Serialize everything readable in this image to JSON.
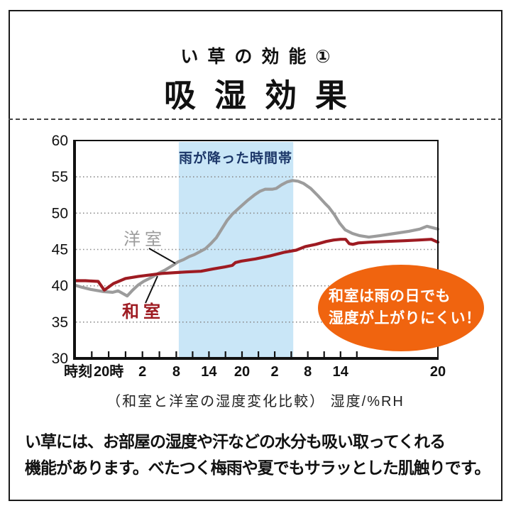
{
  "header": {
    "subtitle": "い草の効能①",
    "title": "吸湿効果"
  },
  "caption": "（和室と洋室の湿度変化比較） 湿度/%RH",
  "body": {
    "line1": "い草には、お部屋の湿度や汗などの水分も吸い取ってくれる",
    "line2": "機能があります。べたつく梅雨や夏でもサラッとした肌触りです。"
  },
  "chart_data": {
    "type": "line",
    "title": "和室と洋室の湿度変化比較",
    "ylabel": "湿度/%RH",
    "x_axis": {
      "prefix_label": "時刻",
      "tick_labels": [
        "20時",
        "2",
        "8",
        "14",
        "20",
        "2",
        "8",
        "14",
        "20"
      ],
      "tick_positions": [
        0.094,
        0.187,
        0.28,
        0.37,
        0.461,
        0.551,
        0.642,
        0.732,
        1.0
      ],
      "minor_tick_positions": [
        0.0475,
        0.1405,
        0.2335,
        0.325,
        0.4155,
        0.506,
        0.5965,
        0.687,
        0.777
      ]
    },
    "y_axis": {
      "min": 30,
      "max": 60,
      "step": 5,
      "tick_labels": [
        60,
        55,
        50,
        45,
        40,
        35,
        30
      ],
      "gridline_values": [
        55,
        50,
        45,
        40,
        35
      ],
      "label": "湿度/%RH"
    },
    "rain_band": {
      "label": "雨が降った時間帯",
      "x_start": 0.287,
      "x_end": 0.602,
      "color": "#c9e6f7",
      "label_color": "#1b3668"
    },
    "series": [
      {
        "name": "洋室",
        "color": "#9c9c9c",
        "points": [
          [
            0,
            40.1
          ],
          [
            0.02,
            39.8
          ],
          [
            0.045,
            39.5
          ],
          [
            0.08,
            39.2
          ],
          [
            0.105,
            39.1
          ],
          [
            0.12,
            39.3
          ],
          [
            0.145,
            38.6
          ],
          [
            0.16,
            39.4
          ],
          [
            0.175,
            40.1
          ],
          [
            0.19,
            40.6
          ],
          [
            0.21,
            41.1
          ],
          [
            0.23,
            41.7
          ],
          [
            0.25,
            42.2
          ],
          [
            0.27,
            42.8
          ],
          [
            0.285,
            43.3
          ],
          [
            0.3,
            43.6
          ],
          [
            0.315,
            44.0
          ],
          [
            0.33,
            44.3
          ],
          [
            0.345,
            44.7
          ],
          [
            0.36,
            45.1
          ],
          [
            0.375,
            45.8
          ],
          [
            0.39,
            46.6
          ],
          [
            0.405,
            47.8
          ],
          [
            0.42,
            49.0
          ],
          [
            0.435,
            49.9
          ],
          [
            0.455,
            50.8
          ],
          [
            0.475,
            51.7
          ],
          [
            0.495,
            52.5
          ],
          [
            0.51,
            53.0
          ],
          [
            0.525,
            53.3
          ],
          [
            0.545,
            53.3
          ],
          [
            0.555,
            53.4
          ],
          [
            0.57,
            53.9
          ],
          [
            0.585,
            54.3
          ],
          [
            0.6,
            54.5
          ],
          [
            0.615,
            54.4
          ],
          [
            0.63,
            54.1
          ],
          [
            0.65,
            53.4
          ],
          [
            0.67,
            52.4
          ],
          [
            0.69,
            51.3
          ],
          [
            0.7,
            50.8
          ],
          [
            0.715,
            49.8
          ],
          [
            0.73,
            48.6
          ],
          [
            0.745,
            47.7
          ],
          [
            0.765,
            47.2
          ],
          [
            0.785,
            46.9
          ],
          [
            0.81,
            46.7
          ],
          [
            0.84,
            46.9
          ],
          [
            0.88,
            47.2
          ],
          [
            0.92,
            47.5
          ],
          [
            0.95,
            47.8
          ],
          [
            0.97,
            48.2
          ],
          [
            0.985,
            48.0
          ],
          [
            1,
            47.8
          ]
        ]
      },
      {
        "name": "和室",
        "color": "#9e1b22",
        "points": [
          [
            0,
            40.7
          ],
          [
            0.03,
            40.7
          ],
          [
            0.065,
            40.6
          ],
          [
            0.082,
            39.4
          ],
          [
            0.107,
            40.3
          ],
          [
            0.14,
            41.0
          ],
          [
            0.176,
            41.3
          ],
          [
            0.24,
            41.7
          ],
          [
            0.307,
            41.9
          ],
          [
            0.348,
            42.0
          ],
          [
            0.38,
            42.3
          ],
          [
            0.414,
            42.6
          ],
          [
            0.434,
            42.8
          ],
          [
            0.443,
            43.2
          ],
          [
            0.459,
            43.4
          ],
          [
            0.498,
            43.7
          ],
          [
            0.537,
            44.1
          ],
          [
            0.576,
            44.6
          ],
          [
            0.61,
            44.9
          ],
          [
            0.635,
            45.4
          ],
          [
            0.664,
            45.7
          ],
          [
            0.693,
            46.1
          ],
          [
            0.713,
            46.3
          ],
          [
            0.732,
            46.4
          ],
          [
            0.746,
            46.4
          ],
          [
            0.756,
            45.8
          ],
          [
            0.766,
            45.7
          ],
          [
            0.781,
            45.9
          ],
          [
            0.81,
            46.0
          ],
          [
            0.859,
            46.1
          ],
          [
            0.908,
            46.2
          ],
          [
            0.947,
            46.3
          ],
          [
            0.982,
            46.4
          ],
          [
            1,
            46.0
          ]
        ]
      }
    ],
    "annotation": {
      "line1": "和室は雨の日でも",
      "line2": "湿度が上がりにくい！",
      "color": "#f0640f",
      "text_color": "#ffffff"
    }
  }
}
